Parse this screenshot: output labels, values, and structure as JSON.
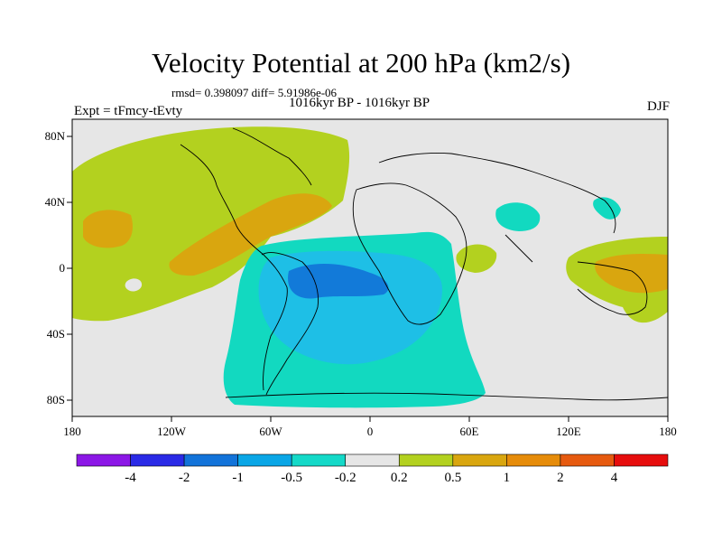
{
  "title": "Velocity Potential at 200 hPa (km2/s)",
  "stats": "rmsd= 0.398097 diff= 5.91986e-06",
  "period": "1016kyr BP - 1016kyr BP",
  "expt": "Expt = tFmcy-tEvty",
  "season": "DJF",
  "colors": {
    "ocean_neutral": "#e6e6e6",
    "light_green": "#b3d11f",
    "orange": "#d9a60f",
    "teal": "#12d9c0",
    "light_blue": "#1ebfe6",
    "blue": "#127ad9"
  },
  "map": {
    "x_ticks": [
      "180",
      "120W",
      "60W",
      "0",
      "60E",
      "120E",
      "180"
    ],
    "y_ticks": [
      "80N",
      "40N",
      "0",
      "40S",
      "80S"
    ]
  },
  "colorbar": {
    "colors": [
      "#8c17e6",
      "#2a2ae6",
      "#1273d9",
      "#0aa6e6",
      "#14d9c8",
      "#e6e6e6",
      "#b3d11f",
      "#d9a60f",
      "#e68c0a",
      "#e65a0f",
      "#e60d0d"
    ],
    "labels": [
      "-4",
      "-2",
      "-1",
      "-0.5",
      "-0.2",
      "0.2",
      "0.5",
      "1",
      "2",
      "4"
    ]
  }
}
